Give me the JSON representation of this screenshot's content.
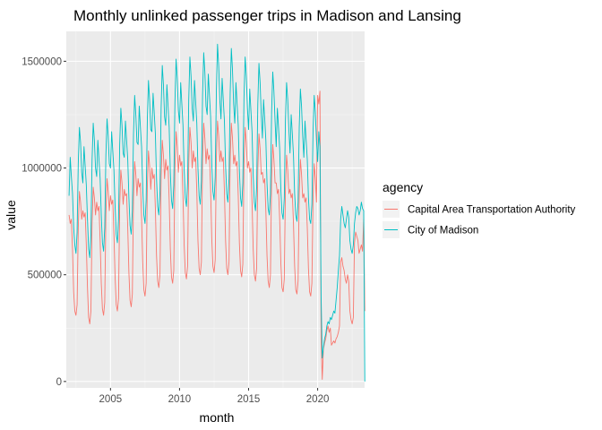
{
  "chart_data": {
    "type": "line",
    "title": "Monthly unlinked passenger trips in Madison and Lansing",
    "xlabel": "month",
    "ylabel": "value",
    "xlim": [
      2001.8,
      2023.4
    ],
    "ylim": [
      -30000,
      1640000
    ],
    "x_ticks": [
      2005,
      2010,
      2015,
      2020
    ],
    "x_tick_labels": [
      "2005",
      "2010",
      "2015",
      "2020"
    ],
    "y_ticks": [
      0,
      500000,
      1000000,
      1500000
    ],
    "y_tick_labels": [
      "0",
      "500000",
      "1000000",
      "1500000"
    ],
    "grid": true,
    "legend": {
      "title": "agency",
      "position": "right"
    },
    "x_start": 2002.0,
    "x_step_months": 1,
    "series": [
      {
        "name": "Capital Area Transportation Authority",
        "color": "#F8766D",
        "values": [
          780000,
          740000,
          760000,
          620000,
          420000,
          330000,
          310000,
          360000,
          720000,
          890000,
          840000,
          760000,
          800000,
          770000,
          790000,
          640000,
          440000,
          300000,
          270000,
          330000,
          740000,
          910000,
          860000,
          780000,
          840000,
          800000,
          820000,
          660000,
          460000,
          340000,
          310000,
          370000,
          780000,
          950000,
          890000,
          800000,
          870000,
          830000,
          850000,
          690000,
          490000,
          360000,
          330000,
          390000,
          820000,
          990000,
          930000,
          830000,
          900000,
          870000,
          880000,
          720000,
          510000,
          380000,
          350000,
          410000,
          860000,
          1030000,
          970000,
          870000,
          950000,
          910000,
          930000,
          770000,
          560000,
          430000,
          400000,
          460000,
          910000,
          1080000,
          1010000,
          900000,
          1000000,
          950000,
          970000,
          810000,
          590000,
          470000,
          440000,
          500000,
          960000,
          1130000,
          1060000,
          950000,
          1040000,
          990000,
          1010000,
          850000,
          620000,
          490000,
          460000,
          520000,
          1000000,
          1170000,
          1100000,
          980000,
          1060000,
          1010000,
          1030000,
          870000,
          640000,
          510000,
          480000,
          540000,
          1020000,
          1190000,
          1120000,
          1000000,
          1080000,
          1030000,
          1050000,
          890000,
          660000,
          530000,
          500000,
          560000,
          1040000,
          1210000,
          1140000,
          1020000,
          1090000,
          1040000,
          1060000,
          900000,
          670000,
          540000,
          510000,
          570000,
          1050000,
          1220000,
          1150000,
          1030000,
          1080000,
          1030000,
          1050000,
          890000,
          660000,
          530000,
          500000,
          560000,
          1040000,
          1210000,
          1140000,
          1020000,
          1060000,
          1010000,
          1030000,
          870000,
          650000,
          520000,
          490000,
          550000,
          1020000,
          1190000,
          1120000,
          1000000,
          1030000,
          980000,
          1000000,
          840000,
          620000,
          500000,
          470000,
          530000,
          990000,
          1160000,
          1090000,
          970000,
          980000,
          930000,
          950000,
          800000,
          590000,
          470000,
          440000,
          500000,
          950000,
          1110000,
          1040000,
          930000,
          930000,
          880000,
          900000,
          760000,
          560000,
          440000,
          420000,
          480000,
          900000,
          1060000,
          990000,
          880000,
          900000,
          860000,
          880000,
          740000,
          540000,
          430000,
          410000,
          470000,
          880000,
          1040000,
          970000,
          860000,
          880000,
          840000,
          860000,
          720000,
          530000,
          420000,
          400000,
          460000,
          860000,
          1020000,
          950000,
          840000,
          1340000,
          1300000,
          1360000,
          200000,
          10000,
          150000,
          180000,
          200000,
          240000,
          260000,
          230000,
          250000,
          170000,
          180000,
          190000,
          180000,
          200000,
          210000,
          230000,
          260000,
          560000,
          580000,
          540000,
          520000,
          480000,
          460000,
          500000,
          470000,
          330000,
          290000,
          270000,
          300000,
          650000,
          700000,
          680000,
          660000,
          600000,
          620000,
          640000,
          610000,
          760000,
          330000
        ]
      },
      {
        "name": "City of Madison",
        "color": "#00BFC4",
        "values": [
          870000,
          1050000,
          960000,
          880000,
          720000,
          640000,
          600000,
          700000,
          1020000,
          1190000,
          1120000,
          980000,
          930000,
          1100000,
          1010000,
          920000,
          760000,
          620000,
          580000,
          690000,
          1040000,
          1210000,
          1130000,
          1000000,
          960000,
          1130000,
          1040000,
          950000,
          780000,
          650000,
          610000,
          720000,
          1060000,
          1230000,
          1150000,
          1020000,
          1000000,
          1170000,
          1080000,
          990000,
          820000,
          690000,
          650000,
          760000,
          1110000,
          1280000,
          1200000,
          1070000,
          1050000,
          1220000,
          1130000,
          1040000,
          860000,
          730000,
          690000,
          800000,
          1160000,
          1340000,
          1250000,
          1120000,
          1110000,
          1290000,
          1190000,
          1100000,
          910000,
          780000,
          740000,
          850000,
          1220000,
          1410000,
          1320000,
          1180000,
          1170000,
          1350000,
          1260000,
          1160000,
          950000,
          820000,
          780000,
          890000,
          1280000,
          1480000,
          1390000,
          1240000,
          1200000,
          1390000,
          1290000,
          1190000,
          980000,
          850000,
          810000,
          920000,
          1310000,
          1510000,
          1420000,
          1270000,
          1210000,
          1400000,
          1300000,
          1200000,
          990000,
          860000,
          820000,
          930000,
          1320000,
          1520000,
          1430000,
          1280000,
          1220000,
          1410000,
          1310000,
          1210000,
          1000000,
          870000,
          830000,
          940000,
          1340000,
          1540000,
          1450000,
          1290000,
          1250000,
          1440000,
          1340000,
          1240000,
          1020000,
          890000,
          850000,
          960000,
          1360000,
          1580000,
          1480000,
          1320000,
          1230000,
          1420000,
          1320000,
          1220000,
          1010000,
          880000,
          840000,
          950000,
          1350000,
          1560000,
          1460000,
          1300000,
          1210000,
          1400000,
          1300000,
          1200000,
          990000,
          860000,
          820000,
          930000,
          1330000,
          1520000,
          1430000,
          1280000,
          1180000,
          1370000,
          1270000,
          1170000,
          960000,
          840000,
          800000,
          910000,
          1300000,
          1490000,
          1400000,
          1250000,
          1140000,
          1320000,
          1230000,
          1130000,
          930000,
          810000,
          780000,
          880000,
          1260000,
          1450000,
          1360000,
          1220000,
          1100000,
          1280000,
          1190000,
          1090000,
          900000,
          790000,
          760000,
          860000,
          1220000,
          1400000,
          1320000,
          1180000,
          1070000,
          1250000,
          1160000,
          1060000,
          880000,
          780000,
          750000,
          840000,
          1190000,
          1370000,
          1290000,
          1150000,
          1050000,
          1220000,
          1130000,
          1040000,
          860000,
          760000,
          740000,
          830000,
          1170000,
          1340000,
          1260000,
          1130000,
          1030000,
          1170000,
          1100000,
          400000,
          110000,
          160000,
          200000,
          220000,
          260000,
          280000,
          270000,
          300000,
          290000,
          310000,
          330000,
          320000,
          380000,
          440000,
          520000,
          590000,
          760000,
          820000,
          780000,
          740000,
          720000,
          760000,
          800000,
          770000,
          660000,
          620000,
          600000,
          640000,
          740000,
          790000,
          820000,
          810000,
          780000,
          800000,
          840000,
          810000,
          800000,
          0
        ]
      }
    ]
  }
}
